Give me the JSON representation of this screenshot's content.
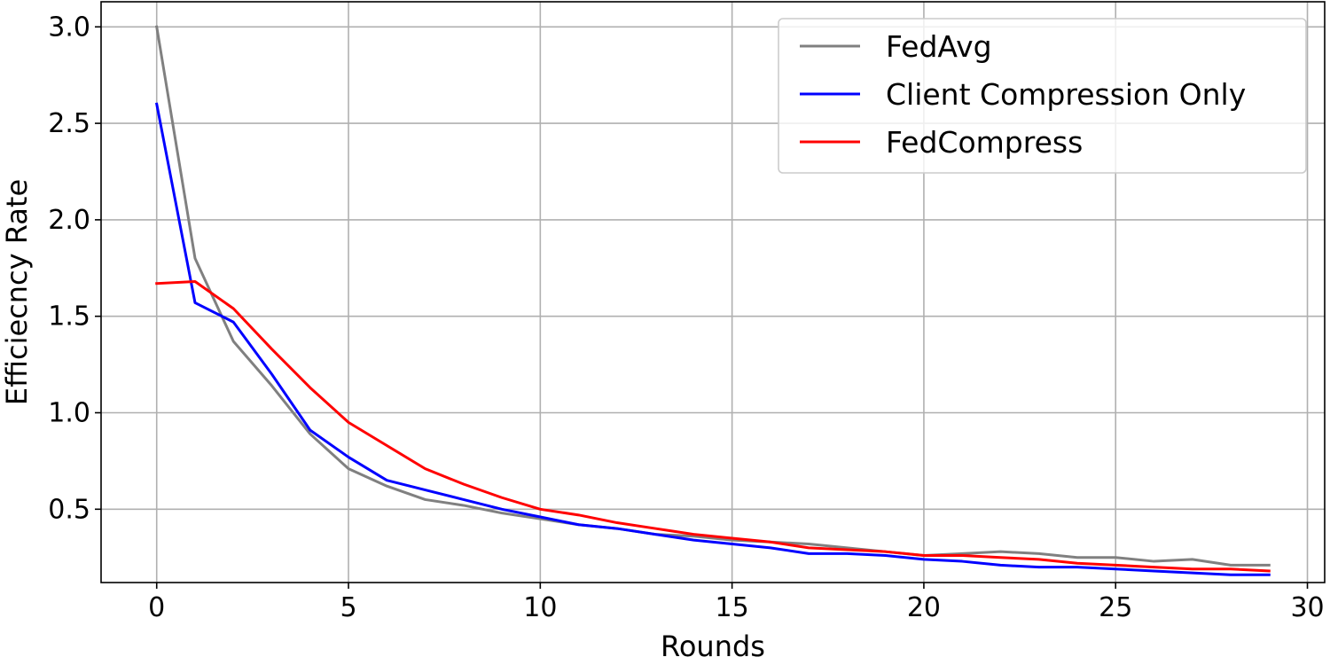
{
  "chart_data": {
    "type": "line",
    "title": "",
    "xlabel": "Rounds",
    "ylabel": "Efficiecncy Rate",
    "xlim": [
      -1.45,
      30.45
    ],
    "ylim": [
      0.12,
      3.13
    ],
    "xticks": [
      0,
      5,
      10,
      15,
      20,
      25,
      30
    ],
    "yticks": [
      0.5,
      1.0,
      1.5,
      2.0,
      2.5,
      3.0
    ],
    "xtick_labels": [
      "0",
      "5",
      "10",
      "15",
      "20",
      "25",
      "30"
    ],
    "ytick_labels": [
      "0.5",
      "1.0",
      "1.5",
      "2.0",
      "2.5",
      "3.0"
    ],
    "grid": true,
    "legend_position": "top-right",
    "x": [
      0,
      1,
      2,
      3,
      4,
      5,
      6,
      7,
      8,
      9,
      10,
      11,
      12,
      13,
      14,
      15,
      16,
      17,
      18,
      19,
      20,
      21,
      22,
      23,
      24,
      25,
      26,
      27,
      28,
      29
    ],
    "series": [
      {
        "name": "FedAvg",
        "color": "#808080",
        "values": [
          3.0,
          1.8,
          1.37,
          1.14,
          0.89,
          0.71,
          0.62,
          0.55,
          0.52,
          0.48,
          0.45,
          0.42,
          0.4,
          0.37,
          0.36,
          0.34,
          0.33,
          0.32,
          0.3,
          0.28,
          0.26,
          0.27,
          0.28,
          0.27,
          0.25,
          0.25,
          0.23,
          0.24,
          0.21,
          0.21
        ]
      },
      {
        "name": "Client Compression Only",
        "color": "#0000ff",
        "values": [
          2.6,
          1.57,
          1.47,
          1.2,
          0.91,
          0.77,
          0.65,
          0.6,
          0.55,
          0.5,
          0.46,
          0.42,
          0.4,
          0.37,
          0.34,
          0.32,
          0.3,
          0.27,
          0.27,
          0.26,
          0.24,
          0.23,
          0.21,
          0.2,
          0.2,
          0.19,
          0.18,
          0.17,
          0.16,
          0.16
        ]
      },
      {
        "name": "FedCompress",
        "color": "#ff0000",
        "values": [
          1.67,
          1.68,
          1.54,
          1.33,
          1.13,
          0.95,
          0.83,
          0.71,
          0.63,
          0.56,
          0.5,
          0.47,
          0.43,
          0.4,
          0.37,
          0.35,
          0.33,
          0.3,
          0.29,
          0.28,
          0.26,
          0.26,
          0.25,
          0.24,
          0.22,
          0.21,
          0.2,
          0.19,
          0.19,
          0.18
        ]
      }
    ]
  }
}
